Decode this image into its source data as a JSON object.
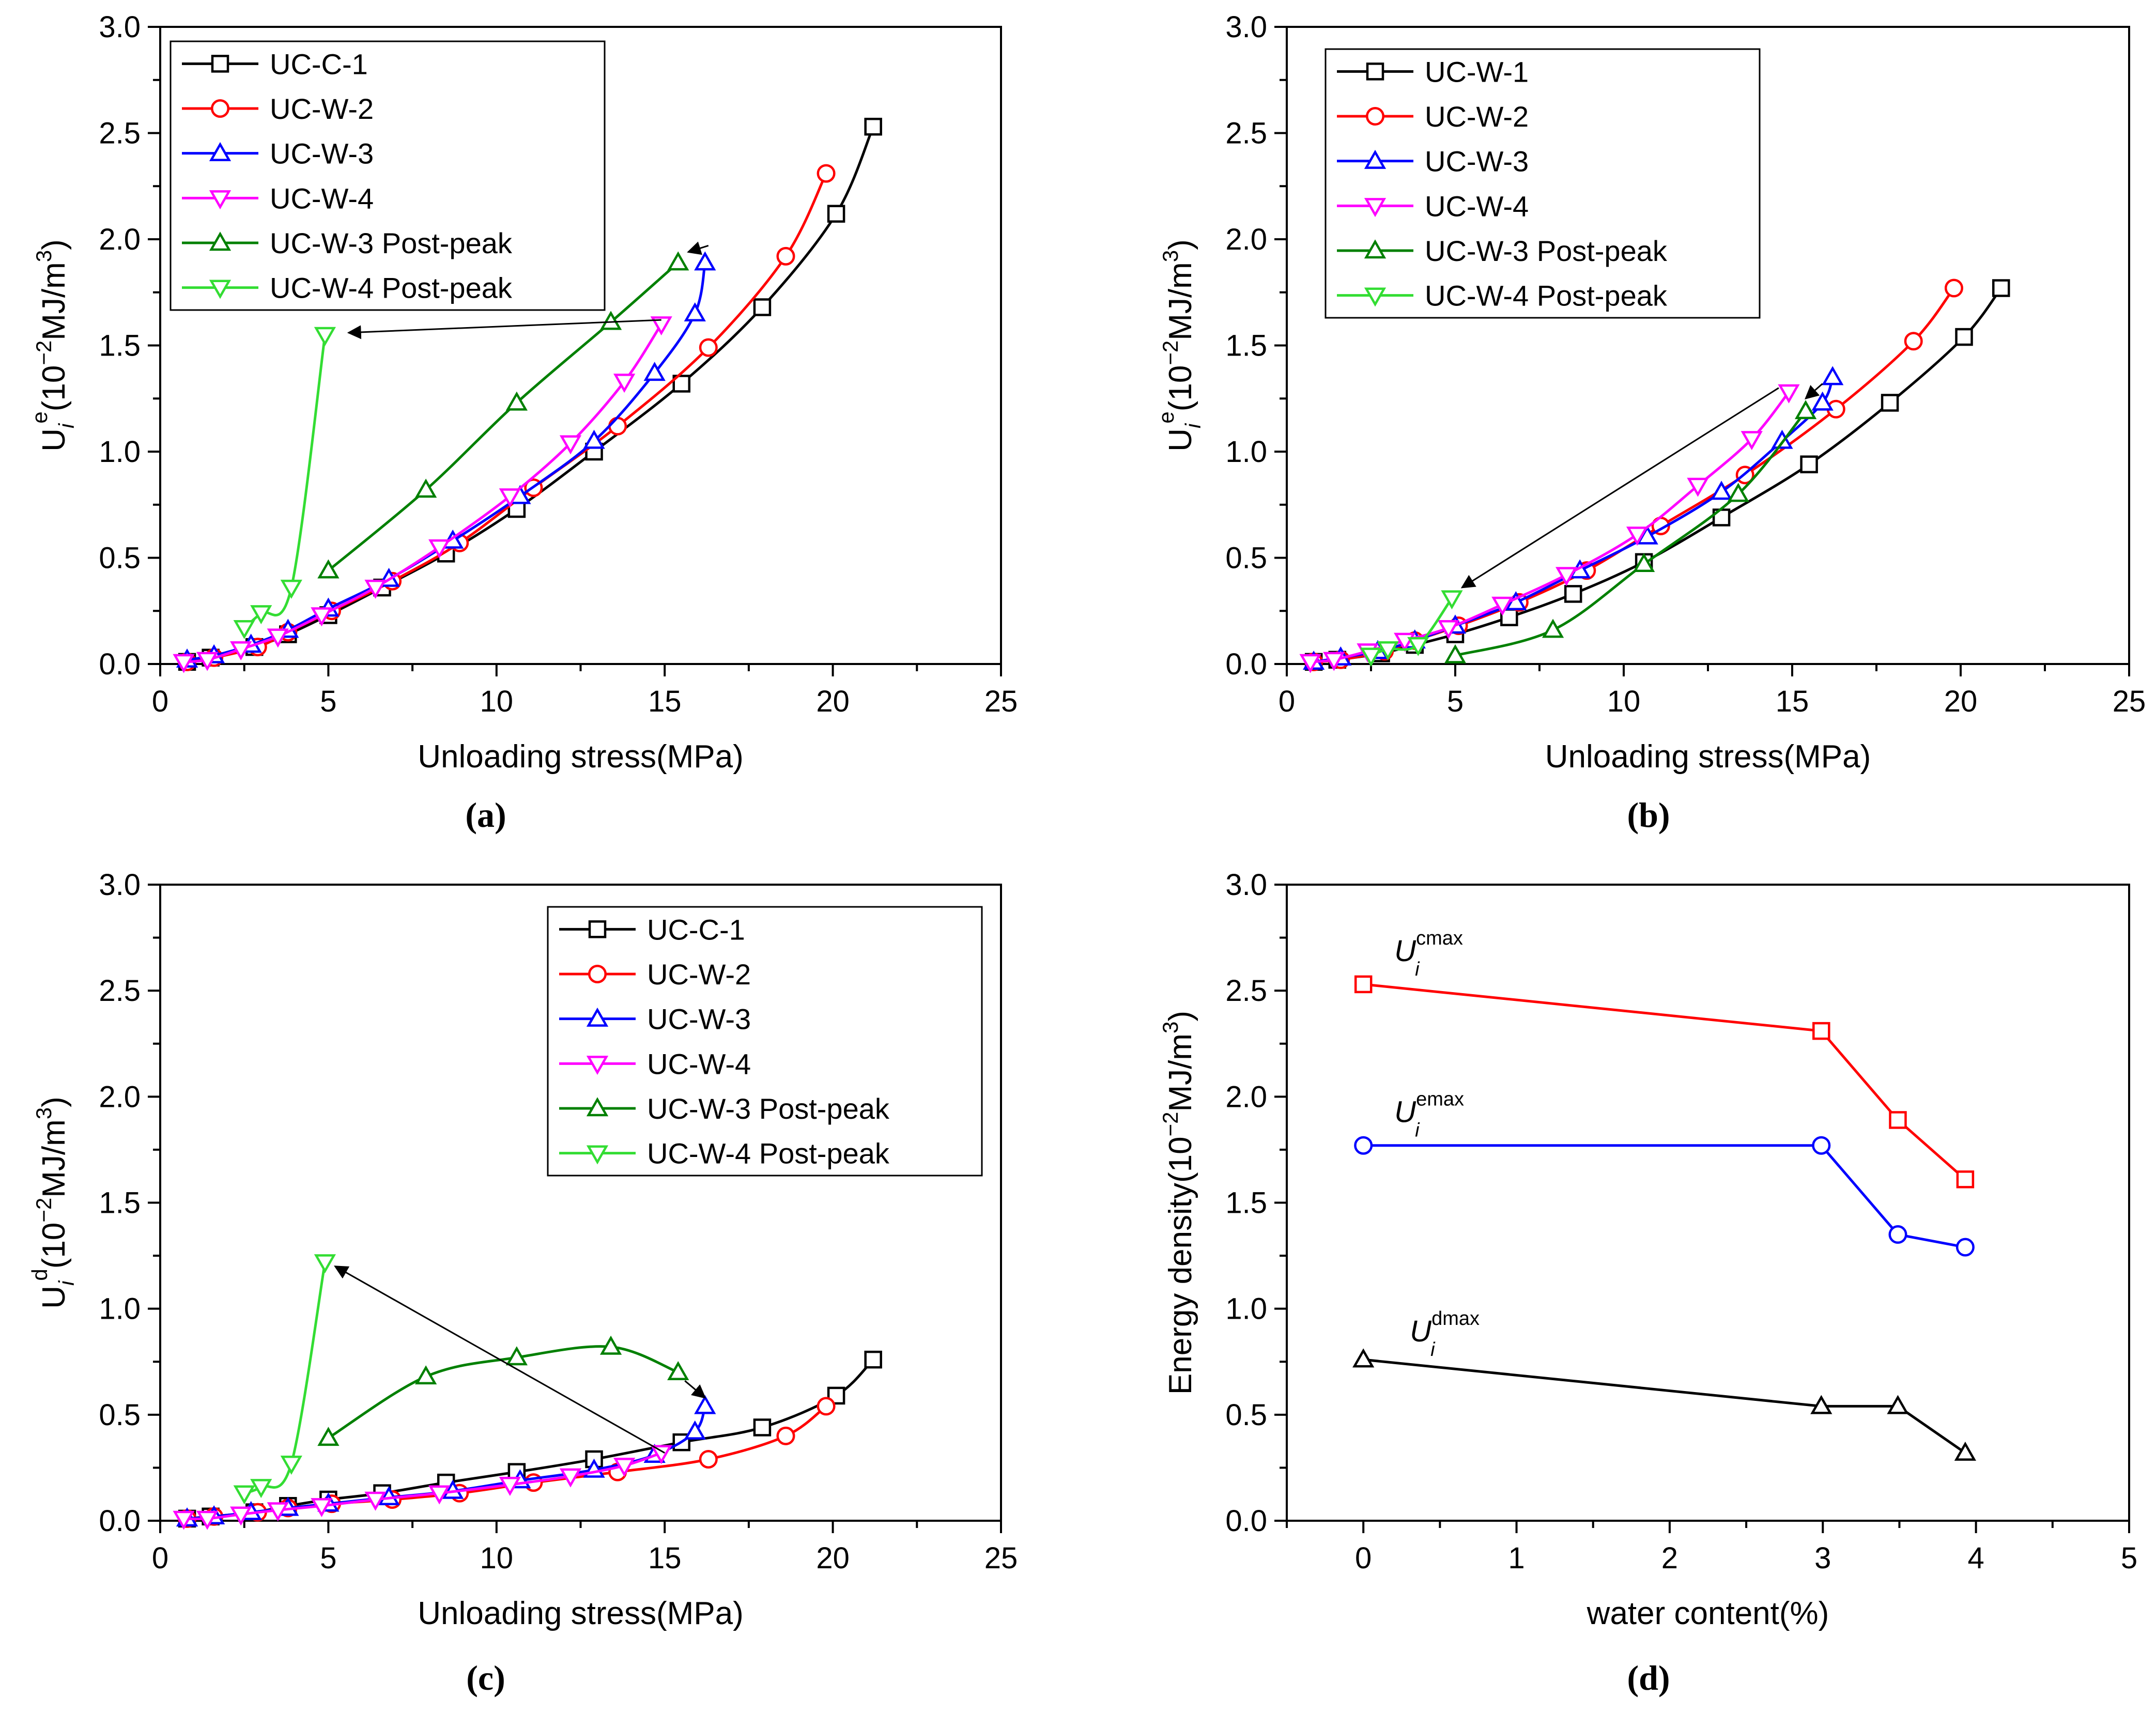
{
  "colors": {
    "black": "#000000",
    "red": "#ff0000",
    "blue": "#0000ff",
    "magenta": "#ff00ff",
    "darkgreen": "#008000",
    "lightgreen": "#33dd33"
  },
  "chart_data": [
    {
      "type": "line",
      "panel_label": "(a)",
      "xlabel": "Unloading stress(MPa)",
      "ylabel": "U_i^e(10^-2 MJ/m^3)",
      "ylabel_parts": {
        "main": "U",
        "sub": "i",
        "sup": "e",
        "unit_open": "(10",
        "unit_exp": "−2",
        "unit_mid": "MJ/m",
        "unit_exp2": "3",
        "unit_close": ")"
      },
      "xlim": [
        0,
        25
      ],
      "ylim": [
        0,
        3
      ],
      "xticks": [
        "0",
        "5",
        "10",
        "15",
        "20",
        "25"
      ],
      "yticks": [
        "0.0",
        "0.5",
        "1.0",
        "1.5",
        "2.0",
        "2.5",
        "3.0"
      ],
      "legend_position": "top-left",
      "series": [
        {
          "name": "UC-C-1",
          "color": "#000000",
          "marker": "square",
          "x": [
            0.8,
            1.5,
            2.8,
            3.8,
            5.0,
            6.6,
            8.5,
            10.6,
            12.9,
            15.5,
            17.9,
            20.1,
            21.2
          ],
          "y": [
            0.01,
            0.03,
            0.08,
            0.14,
            0.23,
            0.36,
            0.52,
            0.73,
            1.0,
            1.32,
            1.68,
            2.12,
            2.53
          ]
        },
        {
          "name": "UC-W-2",
          "color": "#ff0000",
          "marker": "circle",
          "x": [
            0.8,
            1.6,
            2.9,
            3.8,
            5.1,
            6.9,
            8.9,
            11.1,
            13.6,
            16.3,
            18.6,
            19.8
          ],
          "y": [
            0.01,
            0.03,
            0.08,
            0.15,
            0.25,
            0.39,
            0.57,
            0.83,
            1.12,
            1.49,
            1.92,
            2.31
          ]
        },
        {
          "name": "UC-W-3",
          "color": "#0000ff",
          "marker": "triangle-up",
          "x": [
            0.8,
            1.6,
            2.7,
            3.8,
            5.0,
            6.8,
            8.7,
            10.7,
            12.9,
            14.7,
            15.9,
            16.2
          ],
          "y": [
            0.02,
            0.04,
            0.09,
            0.16,
            0.26,
            0.4,
            0.58,
            0.79,
            1.05,
            1.37,
            1.65,
            1.89
          ]
        },
        {
          "name": "UC-W-4",
          "color": "#ff00ff",
          "marker": "triangle-down",
          "x": [
            0.7,
            1.4,
            2.4,
            3.5,
            4.8,
            6.4,
            8.3,
            10.4,
            12.2,
            13.8,
            14.9
          ],
          "y": [
            0.01,
            0.02,
            0.07,
            0.13,
            0.23,
            0.36,
            0.55,
            0.79,
            1.04,
            1.33,
            1.6
          ]
        },
        {
          "name": "UC-W-3 Post-peak",
          "color": "#008000",
          "marker": "triangle-up",
          "x": [
            5.0,
            7.9,
            10.6,
            13.4,
            15.4
          ],
          "y": [
            0.44,
            0.82,
            1.23,
            1.61,
            1.89
          ]
        },
        {
          "name": "UC-W-4 Post-peak",
          "color": "#33dd33",
          "marker": "triangle-down",
          "x": [
            2.5,
            3.0,
            3.9,
            4.9
          ],
          "y": [
            0.17,
            0.24,
            0.36,
            1.55
          ]
        }
      ],
      "arrows": [
        {
          "from": [
            14.9,
            1.62
          ],
          "to": [
            5.6,
            1.56
          ]
        },
        {
          "from": [
            16.3,
            1.97
          ],
          "to": [
            15.7,
            1.94
          ]
        }
      ]
    },
    {
      "type": "line",
      "panel_label": "(b)",
      "xlabel": "Unloading stress(MPa)",
      "ylabel": "U_i^e(10^-2 MJ/m^3)",
      "ylabel_parts": {
        "main": "U",
        "sub": "i",
        "sup": "e",
        "unit_open": "(10",
        "unit_exp": "−2",
        "unit_mid": "MJ/m",
        "unit_exp2": "3",
        "unit_close": ")"
      },
      "xlim": [
        0,
        25
      ],
      "ylim": [
        0,
        3
      ],
      "xticks": [
        "0",
        "5",
        "10",
        "15",
        "20",
        "25"
      ],
      "yticks": [
        "0.0",
        "0.5",
        "1.0",
        "1.5",
        "2.0",
        "2.5",
        "3.0"
      ],
      "legend_position": "top-left",
      "series": [
        {
          "name": "UC-W-1",
          "color": "#000000",
          "marker": "square",
          "x": [
            0.8,
            1.5,
            2.8,
            3.8,
            5.0,
            6.6,
            8.5,
            10.6,
            12.9,
            15.5,
            17.9,
            20.1,
            21.2
          ],
          "y": [
            0.01,
            0.02,
            0.05,
            0.09,
            0.14,
            0.22,
            0.33,
            0.48,
            0.69,
            0.94,
            1.23,
            1.54,
            1.77
          ]
        },
        {
          "name": "UC-W-2",
          "color": "#ff0000",
          "marker": "circle",
          "x": [
            0.8,
            1.6,
            2.9,
            3.8,
            5.1,
            6.9,
            8.9,
            11.1,
            13.6,
            16.3,
            18.6,
            19.8
          ],
          "y": [
            0.01,
            0.02,
            0.06,
            0.11,
            0.18,
            0.29,
            0.44,
            0.65,
            0.89,
            1.2,
            1.52,
            1.77
          ]
        },
        {
          "name": "UC-W-3",
          "color": "#0000ff",
          "marker": "triangle-up",
          "x": [
            0.8,
            1.6,
            2.7,
            3.8,
            5.0,
            6.8,
            8.7,
            10.7,
            12.9,
            14.7,
            15.9,
            16.2
          ],
          "y": [
            0.01,
            0.03,
            0.06,
            0.11,
            0.18,
            0.29,
            0.44,
            0.6,
            0.81,
            1.05,
            1.23,
            1.35
          ]
        },
        {
          "name": "UC-W-4",
          "color": "#ff00ff",
          "marker": "triangle-down",
          "x": [
            0.7,
            1.4,
            2.4,
            3.5,
            4.8,
            6.4,
            8.3,
            10.4,
            12.2,
            13.8,
            14.9
          ],
          "y": [
            0.01,
            0.02,
            0.06,
            0.11,
            0.17,
            0.28,
            0.42,
            0.61,
            0.84,
            1.06,
            1.28
          ]
        },
        {
          "name": "UC-W-3 Post-peak",
          "color": "#008000",
          "marker": "triangle-up",
          "x": [
            5.0,
            7.9,
            10.6,
            13.4,
            15.4
          ],
          "y": [
            0.04,
            0.16,
            0.47,
            0.8,
            1.19
          ]
        },
        {
          "name": "UC-W-4 Post-peak",
          "color": "#33dd33",
          "marker": "triangle-down",
          "x": [
            2.5,
            3.0,
            3.9,
            4.9
          ],
          "y": [
            0.04,
            0.07,
            0.09,
            0.31
          ]
        }
      ],
      "arrows": [
        {
          "from": [
            14.6,
            1.3
          ],
          "to": [
            5.2,
            0.36
          ]
        },
        {
          "from": [
            15.9,
            1.32
          ],
          "to": [
            15.4,
            1.25
          ]
        }
      ]
    },
    {
      "type": "line",
      "panel_label": "(c)",
      "xlabel": "Unloading stress(MPa)",
      "ylabel": "U_i^d(10^-2 MJ/m^3)",
      "ylabel_parts": {
        "main": "U",
        "sub": "i",
        "sup": "d",
        "unit_open": "(10",
        "unit_exp": "−2",
        "unit_mid": "MJ/m",
        "unit_exp2": "3",
        "unit_close": ")"
      },
      "xlim": [
        0,
        25
      ],
      "ylim": [
        0,
        3
      ],
      "xticks": [
        "0",
        "5",
        "10",
        "15",
        "20",
        "25"
      ],
      "yticks": [
        "0.0",
        "0.5",
        "1.0",
        "1.5",
        "2.0",
        "2.5",
        "3.0"
      ],
      "legend_position": "top-right",
      "series": [
        {
          "name": "UC-C-1",
          "color": "#000000",
          "marker": "square",
          "x": [
            0.8,
            1.5,
            2.8,
            3.8,
            5.0,
            6.6,
            8.5,
            10.6,
            12.9,
            15.5,
            17.9,
            20.1,
            21.2
          ],
          "y": [
            0.01,
            0.02,
            0.04,
            0.07,
            0.1,
            0.13,
            0.18,
            0.23,
            0.29,
            0.37,
            0.44,
            0.59,
            0.76
          ]
        },
        {
          "name": "UC-W-2",
          "color": "#ff0000",
          "marker": "circle",
          "x": [
            0.8,
            1.6,
            2.9,
            3.8,
            5.1,
            6.9,
            8.9,
            11.1,
            13.6,
            16.3,
            18.6,
            19.8
          ],
          "y": [
            0.01,
            0.02,
            0.04,
            0.06,
            0.08,
            0.1,
            0.13,
            0.18,
            0.23,
            0.29,
            0.4,
            0.54
          ]
        },
        {
          "name": "UC-W-3",
          "color": "#0000ff",
          "marker": "triangle-up",
          "x": [
            0.8,
            1.6,
            2.7,
            3.8,
            5.0,
            6.8,
            8.7,
            10.7,
            12.9,
            14.7,
            15.9,
            16.2
          ],
          "y": [
            0.01,
            0.02,
            0.04,
            0.06,
            0.08,
            0.11,
            0.14,
            0.19,
            0.24,
            0.31,
            0.42,
            0.54
          ]
        },
        {
          "name": "UC-W-4",
          "color": "#ff00ff",
          "marker": "triangle-down",
          "x": [
            0.7,
            1.4,
            2.4,
            3.5,
            4.8,
            6.4,
            8.3,
            10.4,
            12.2,
            13.8,
            14.9
          ],
          "y": [
            0.01,
            0.01,
            0.03,
            0.05,
            0.07,
            0.1,
            0.13,
            0.17,
            0.21,
            0.26,
            0.32
          ]
        },
        {
          "name": "UC-W-3 Post-peak",
          "color": "#008000",
          "marker": "triangle-up",
          "x": [
            5.0,
            7.9,
            10.6,
            13.4,
            15.4
          ],
          "y": [
            0.39,
            0.68,
            0.77,
            0.82,
            0.7
          ]
        },
        {
          "name": "UC-W-4 Post-peak",
          "color": "#33dd33",
          "marker": "triangle-down",
          "x": [
            2.5,
            3.0,
            3.9,
            4.9
          ],
          "y": [
            0.13,
            0.16,
            0.27,
            1.22
          ]
        }
      ],
      "arrows": [
        {
          "from": [
            15.0,
            0.32
          ],
          "to": [
            5.2,
            1.2
          ]
        },
        {
          "from": [
            15.6,
            0.66
          ],
          "to": [
            16.2,
            0.58
          ]
        }
      ]
    },
    {
      "type": "line",
      "panel_label": "(d)",
      "xlabel": "water content(%)",
      "ylabel": "Energy density(10^-2 MJ/m^3)",
      "ylabel_parts": {
        "main": "Energy density",
        "unit_open": "(10",
        "unit_exp": "−2",
        "unit_mid": "MJ/m",
        "unit_exp2": "3",
        "unit_close": ")"
      },
      "xlim": [
        -0.5,
        5
      ],
      "ylim": [
        0,
        3
      ],
      "xticks": [
        "0",
        "1",
        "2",
        "3",
        "4",
        "5"
      ],
      "yticks": [
        "0.0",
        "0.5",
        "1.0",
        "1.5",
        "2.0",
        "2.5",
        "3.0"
      ],
      "legend_position": "none",
      "series": [
        {
          "name": "U_i^cmax",
          "label_main": "U",
          "label_sub": "i",
          "label_sup": "cmax",
          "color": "#ff0000",
          "marker": "square",
          "x": [
            0,
            2.99,
            3.49,
            3.93
          ],
          "y": [
            2.53,
            2.31,
            1.89,
            1.61
          ]
        },
        {
          "name": "U_i^emax",
          "label_main": "U",
          "label_sub": "i",
          "label_sup": "emax",
          "color": "#0000ff",
          "marker": "circle",
          "x": [
            0,
            2.99,
            3.49,
            3.93
          ],
          "y": [
            1.77,
            1.77,
            1.35,
            1.29
          ]
        },
        {
          "name": "U_i^dmax",
          "label_main": "U",
          "label_sub": "i",
          "label_sup": "dmax",
          "color": "#000000",
          "marker": "triangle-up",
          "x": [
            0,
            2.99,
            3.49,
            3.93
          ],
          "y": [
            0.76,
            0.54,
            0.54,
            0.32
          ]
        }
      ]
    }
  ]
}
